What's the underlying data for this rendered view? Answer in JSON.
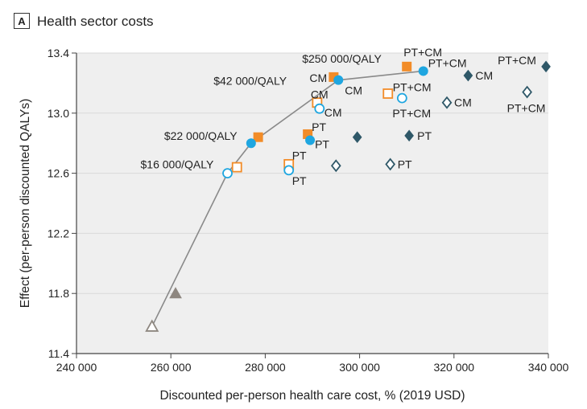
{
  "panel": {
    "letter": "A",
    "title": "Health sector costs"
  },
  "colors": {
    "orange": "#f28c28",
    "blue": "#1fa6e0",
    "navy": "#2f5868",
    "gray": "#8e8780",
    "frontier": "#8a8a8a",
    "grid": "#d9d9d9",
    "plot_bg": "#efefef"
  },
  "chart_data": {
    "type": "scatter",
    "title": "Health sector costs",
    "xlabel": "Discounted per-person health care cost, % (2019 USD)",
    "ylabel": "Effect (per-person discounted QALYs)",
    "xlim": [
      240000,
      340000
    ],
    "ylim": [
      11.4,
      13.4
    ],
    "x_ticks": [
      240000,
      260000,
      280000,
      300000,
      320000,
      340000
    ],
    "x_tick_labels": [
      "240 000",
      "260 000",
      "280 000",
      "300 000",
      "320 000",
      "340 000"
    ],
    "y_ticks": [
      11.4,
      11.8,
      12.2,
      12.6,
      13.0,
      13.4
    ],
    "y_tick_labels": [
      "11.4",
      "11.8",
      "12.2",
      "12.6",
      "13.0",
      "13.4"
    ],
    "grid": true,
    "frontier": [
      [
        256000,
        11.58
      ],
      [
        272000,
        12.6
      ],
      [
        277000,
        12.8
      ],
      [
        295500,
        13.22
      ],
      [
        313500,
        13.28
      ]
    ],
    "points": [
      {
        "x": 256000,
        "y": 11.58,
        "shape": "triangle",
        "filled": false,
        "color": "gray"
      },
      {
        "x": 261000,
        "y": 11.8,
        "shape": "triangle",
        "filled": true,
        "color": "gray"
      },
      {
        "x": 274000,
        "y": 12.64,
        "shape": "square",
        "filled": false,
        "color": "orange"
      },
      {
        "x": 272000,
        "y": 12.6,
        "shape": "circle",
        "filled": false,
        "color": "blue"
      },
      {
        "x": 278500,
        "y": 12.84,
        "shape": "square",
        "filled": true,
        "color": "orange"
      },
      {
        "x": 277000,
        "y": 12.8,
        "shape": "circle",
        "filled": true,
        "color": "blue"
      },
      {
        "x": 285000,
        "y": 12.66,
        "shape": "square",
        "filled": false,
        "color": "orange",
        "label": "PT",
        "dx": 4,
        "dy": -6
      },
      {
        "x": 285000,
        "y": 12.62,
        "shape": "circle",
        "filled": false,
        "color": "blue",
        "label": "PT",
        "dx": 4,
        "dy": 18
      },
      {
        "x": 289000,
        "y": 12.86,
        "shape": "square",
        "filled": true,
        "color": "orange",
        "label": "PT",
        "dx": 5,
        "dy": -4
      },
      {
        "x": 289500,
        "y": 12.82,
        "shape": "circle",
        "filled": true,
        "color": "blue",
        "label": "PT",
        "dx": 6,
        "dy": 10
      },
      {
        "x": 291000,
        "y": 13.07,
        "shape": "square",
        "filled": false,
        "color": "orange",
        "label": "CM",
        "dx": -8,
        "dy": -5
      },
      {
        "x": 291500,
        "y": 13.03,
        "shape": "circle",
        "filled": false,
        "color": "blue",
        "label": "CM",
        "dx": 6,
        "dy": 10
      },
      {
        "x": 294500,
        "y": 13.24,
        "shape": "square",
        "filled": true,
        "color": "orange",
        "label": "CM",
        "dx": -30,
        "dy": 6
      },
      {
        "x": 295500,
        "y": 13.22,
        "shape": "circle",
        "filled": true,
        "color": "blue",
        "label": "CM",
        "dx": 8,
        "dy": 18
      },
      {
        "x": 306000,
        "y": 13.13,
        "shape": "square",
        "filled": false,
        "color": "orange",
        "label": "PT+CM",
        "dx": 6,
        "dy": -3
      },
      {
        "x": 309000,
        "y": 13.1,
        "shape": "circle",
        "filled": false,
        "color": "blue",
        "label": "PT+CM",
        "dx": -12,
        "dy": 24
      },
      {
        "x": 310000,
        "y": 13.31,
        "shape": "square",
        "filled": true,
        "color": "orange",
        "label": "PT+CM",
        "dx": -4,
        "dy": -13
      },
      {
        "x": 313500,
        "y": 13.28,
        "shape": "circle",
        "filled": true,
        "color": "blue",
        "label": "PT+CM",
        "dx": 6,
        "dy": -5
      },
      {
        "x": 299500,
        "y": 12.84,
        "shape": "diamond",
        "filled": true,
        "color": "navy"
      },
      {
        "x": 295000,
        "y": 12.65,
        "shape": "diamond",
        "filled": false,
        "color": "navy"
      },
      {
        "x": 310500,
        "y": 12.85,
        "shape": "diamond",
        "filled": true,
        "color": "navy",
        "label": "PT",
        "dx": 10,
        "dy": 5
      },
      {
        "x": 306500,
        "y": 12.66,
        "shape": "diamond",
        "filled": false,
        "color": "navy",
        "label": "PT",
        "dx": 9,
        "dy": 5
      },
      {
        "x": 323000,
        "y": 13.25,
        "shape": "diamond",
        "filled": true,
        "color": "navy",
        "label": "CM",
        "dx": 9,
        "dy": 5
      },
      {
        "x": 318500,
        "y": 13.07,
        "shape": "diamond",
        "filled": false,
        "color": "navy",
        "label": "CM",
        "dx": 9,
        "dy": 5
      },
      {
        "x": 339500,
        "y": 13.31,
        "shape": "diamond",
        "filled": true,
        "color": "navy",
        "label": "PT+CM",
        "dx": -60,
        "dy": -3
      },
      {
        "x": 335500,
        "y": 13.14,
        "shape": "diamond",
        "filled": false,
        "color": "navy",
        "label": "PT+CM",
        "dx": -25,
        "dy": 25
      }
    ],
    "annotations": [
      {
        "text": "$16 000/QALY",
        "x": 272000,
        "y": 12.6,
        "dx": -108,
        "dy": -6
      },
      {
        "text": "$22 000/QALY",
        "x": 277000,
        "y": 12.8,
        "dx": -108,
        "dy": -4
      },
      {
        "text": "$42 000/QALY",
        "x": 295500,
        "y": 13.22,
        "dx": -155,
        "dy": 6
      },
      {
        "text": "$250 000/QALY",
        "x": 310000,
        "y": 13.31,
        "dx": -130,
        "dy": -5
      }
    ]
  }
}
